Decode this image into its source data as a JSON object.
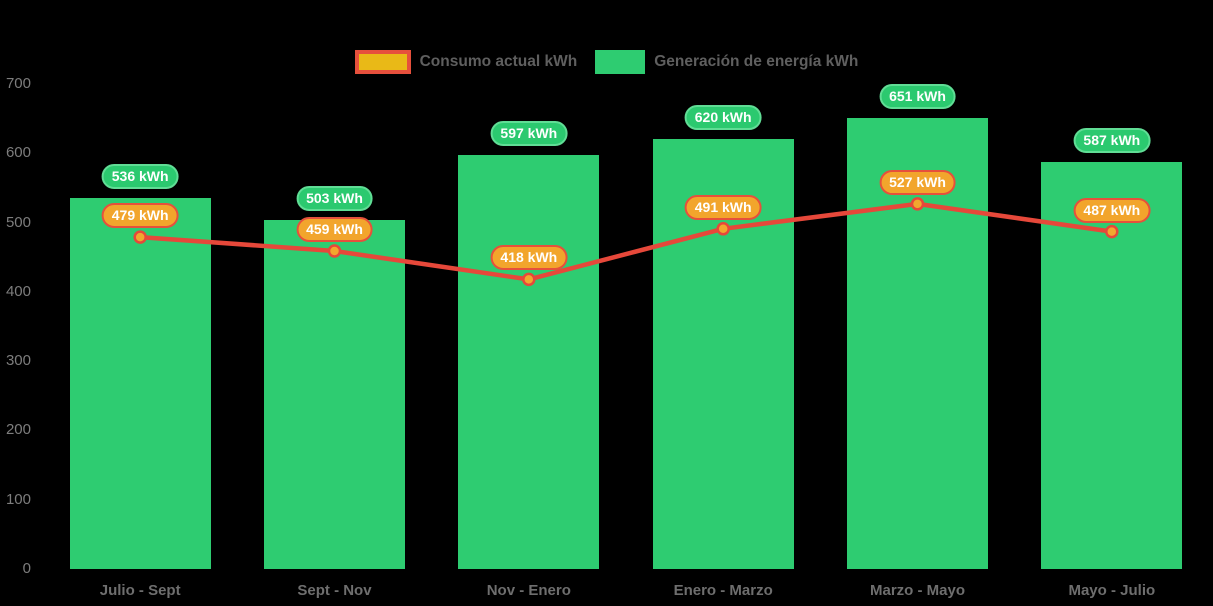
{
  "background_color": "#000000",
  "legend": {
    "items": [
      {
        "label": "Consumo actual kWh",
        "swatch_icon": "line-series-swatch",
        "swatch_fill": "#e9b917",
        "swatch_border": "#e6503c"
      },
      {
        "label": "Generación de energía kWh",
        "swatch_icon": "bar-series-swatch",
        "swatch_fill": "#2ecc71",
        "swatch_border": ""
      }
    ],
    "text_color": "#5f5f5f",
    "position": "top"
  },
  "chart_data": {
    "type": "combo-bar-line",
    "title": "",
    "xlabel": "",
    "ylabel": "",
    "unit": "kWh",
    "categories": [
      "Julio - Sept",
      "Sept - Nov",
      "Nov - Enero",
      "Enero - Marzo",
      "Marzo - Mayo",
      "Mayo - Julio"
    ],
    "series": [
      {
        "name": "Consumo actual kWh",
        "type": "line",
        "values": [
          479,
          459,
          418,
          491,
          527,
          487
        ],
        "labels": [
          "479 kWh",
          "459 kWh",
          "418 kWh",
          "491 kWh",
          "527 kWh",
          "487 kWh"
        ],
        "line_color": "#e6483a",
        "point_fill": "#f2a72e",
        "point_border": "#e6483a",
        "badge_fill": "#f2a52c",
        "badge_border": "#e6503c"
      },
      {
        "name": "Generación de energía kWh",
        "type": "bar",
        "values": [
          536,
          503,
          597,
          620,
          651,
          587
        ],
        "labels": [
          "536 kWh",
          "503 kWh",
          "597 kWh",
          "620 kWh",
          "651 kWh",
          "587 kWh"
        ],
        "bar_color": "#2ecc71",
        "badge_fill": "#2bc96f",
        "badge_border": "#60dd95"
      }
    ],
    "y_ticks": [
      0,
      100,
      200,
      300,
      400,
      500,
      600,
      700
    ],
    "ylim": [
      0,
      700
    ],
    "grid": false,
    "tick_color": "#7d7d7d",
    "x_tick_color": "#6e6e6e"
  }
}
